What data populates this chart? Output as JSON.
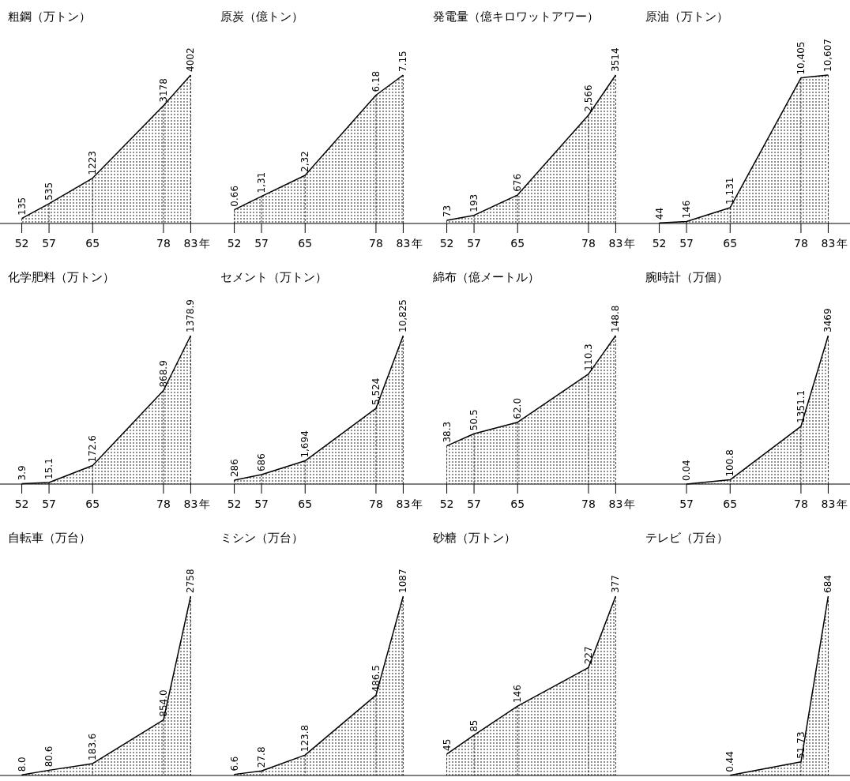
{
  "chart_data": [
    {
      "type": "area",
      "title": "粗鋼（万トン）",
      "x": [
        52,
        57,
        65,
        78,
        83
      ],
      "values": [
        135,
        535,
        1223,
        3178,
        4002
      ],
      "value_labels": [
        "135",
        "535",
        "1223",
        "3178",
        "4002"
      ],
      "color": "#000000",
      "xlim": [
        48,
        87
      ],
      "xticks": [
        52,
        57,
        65,
        78,
        83
      ],
      "xlabel": "年",
      "tick_labels": "x"
    },
    {
      "type": "area",
      "title": "原炭（億トン）",
      "x": [
        52,
        57,
        65,
        78,
        83
      ],
      "values": [
        0.66,
        1.31,
        2.32,
        6.18,
        7.15
      ],
      "value_labels": [
        "0.66",
        "1,31",
        "2,32",
        "6.18",
        "7.15"
      ],
      "color": "#000000",
      "xlim": [
        48,
        87
      ],
      "xticks": [
        52,
        57,
        65,
        78,
        83
      ],
      "xlabel": "年",
      "tick_labels": "x"
    },
    {
      "type": "area",
      "title": "発電量（億キロワットアワー）",
      "x": [
        52,
        57,
        65,
        78,
        83
      ],
      "values": [
        73,
        193,
        676,
        2566,
        3514
      ],
      "value_labels": [
        "73",
        "193",
        "676",
        "2,566",
        "3514"
      ],
      "color": "#000000",
      "xlim": [
        48,
        87
      ],
      "xticks": [
        52,
        57,
        65,
        78,
        83
      ],
      "xlabel": "年",
      "tick_labels": "x"
    },
    {
      "type": "area",
      "title": "原油（万トン）",
      "x": [
        52,
        57,
        65,
        78,
        83
      ],
      "values": [
        44,
        146,
        1131,
        10405,
        10607
      ],
      "value_labels": [
        "44",
        "146",
        "1,131",
        "10,405",
        "10,607"
      ],
      "color": "#000000",
      "xlim": [
        48,
        87
      ],
      "xticks": [
        52,
        57,
        65,
        78,
        83
      ],
      "xlabel": "年",
      "tick_labels": "x"
    },
    {
      "type": "area",
      "title": "化学肥料（万トン）",
      "x": [
        52,
        57,
        65,
        78,
        83
      ],
      "values": [
        3.9,
        15.1,
        172.6,
        868.9,
        1378.9
      ],
      "value_labels": [
        "3.9",
        "15.1",
        "172.6",
        "868.9",
        "1378.9"
      ],
      "color": "#000000",
      "xlim": [
        48,
        87
      ],
      "xticks": [
        52,
        57,
        65,
        78,
        83
      ],
      "xlabel": "年",
      "tick_labels": "x"
    },
    {
      "type": "area",
      "title": "セメント（万トン）",
      "x": [
        52,
        57,
        65,
        78,
        83
      ],
      "values": [
        286,
        686,
        1694,
        5524,
        10825
      ],
      "value_labels": [
        "286",
        "686",
        "1,694",
        "5,524",
        "10,825"
      ],
      "color": "#000000",
      "xlim": [
        48,
        87
      ],
      "xticks": [
        52,
        57,
        65,
        78,
        83
      ],
      "xlabel": "年",
      "tick_labels": "x"
    },
    {
      "type": "area",
      "title": "綿布（億メートル）",
      "x": [
        52,
        57,
        65,
        78,
        83
      ],
      "values": [
        38.3,
        50.5,
        62.0,
        110.3,
        148.8
      ],
      "value_labels": [
        "38.3",
        "50.5",
        "62.0",
        "110.3",
        "148.8"
      ],
      "color": "#000000",
      "xlim": [
        48,
        87
      ],
      "xticks": [
        52,
        57,
        65,
        78,
        83
      ],
      "xlabel": "年",
      "tick_labels": "x"
    },
    {
      "type": "area",
      "title": "腕時計（万個）",
      "x": [
        57,
        65,
        78,
        83
      ],
      "values": [
        0.04,
        100.8,
        1351.1,
        3469
      ],
      "value_labels": [
        "0.04",
        "100.8",
        "1351.1",
        "3469"
      ],
      "color": "#000000",
      "xlim": [
        48,
        87
      ],
      "xticks": [
        57,
        65,
        78,
        83
      ],
      "xlabel": "年",
      "tick_labels": "x"
    },
    {
      "type": "area",
      "title": "自転車（万台）",
      "x": [
        52,
        57,
        65,
        78,
        83
      ],
      "values": [
        8.0,
        80.6,
        183.6,
        854.0,
        2758
      ],
      "value_labels": [
        "8.0",
        "80.6",
        "183.6",
        "854.0",
        "2758"
      ],
      "color": "#000000",
      "xlim": [
        48,
        87
      ],
      "tick_labels": false
    },
    {
      "type": "area",
      "title": "ミシン（万台）",
      "x": [
        52,
        57,
        65,
        78,
        83
      ],
      "values": [
        6.6,
        27.8,
        123.8,
        486.5,
        1087
      ],
      "value_labels": [
        "6.6",
        "27.8",
        "123.8",
        "486.5",
        "1087"
      ],
      "color": "#000000",
      "xlim": [
        48,
        87
      ],
      "tick_labels": false
    },
    {
      "type": "area",
      "title": "砂糖（万トン）",
      "x": [
        52,
        57,
        65,
        78,
        83
      ],
      "values": [
        45,
        85,
        146,
        227,
        377
      ],
      "value_labels": [
        "45",
        "85",
        "146",
        "227",
        "377"
      ],
      "color": "#000000",
      "xlim": [
        48,
        87
      ],
      "tick_labels": false
    },
    {
      "type": "area",
      "title": "テレビ（万台）",
      "x": [
        65,
        78,
        83
      ],
      "values": [
        0.44,
        51.73,
        684
      ],
      "value_labels": [
        "0.44",
        "51.73",
        "684"
      ],
      "color": "#000000",
      "xlim": [
        48,
        87
      ],
      "tick_labels": false
    }
  ]
}
